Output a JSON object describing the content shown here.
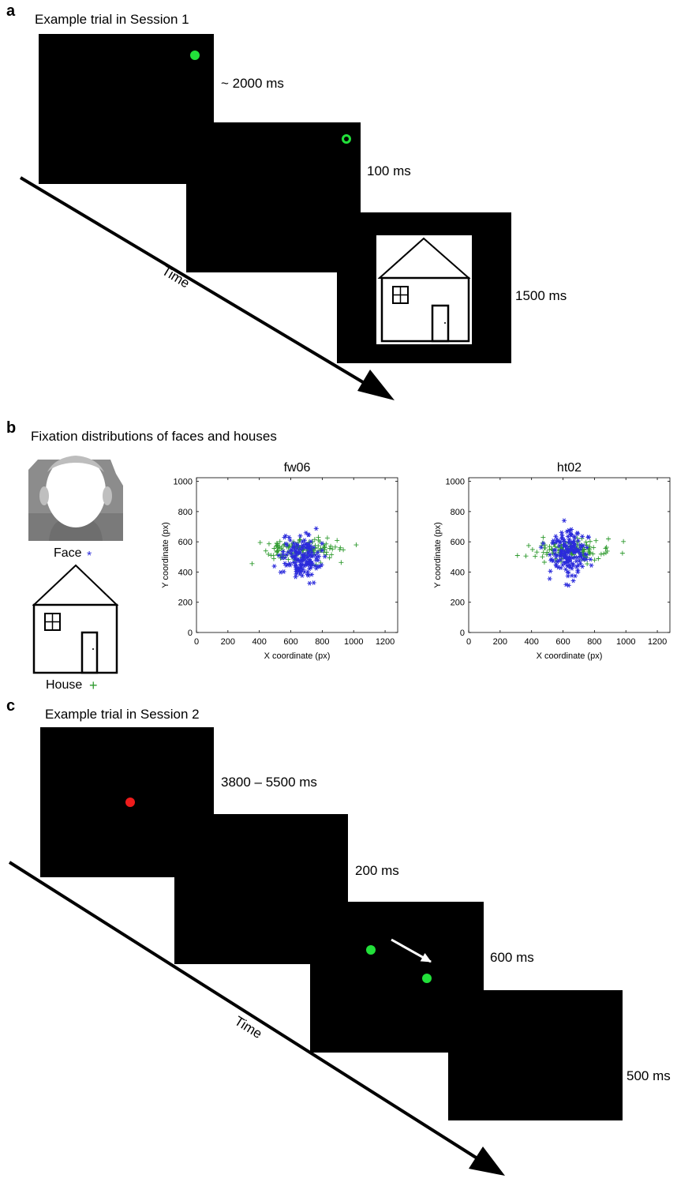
{
  "panel_a": {
    "letter": "a",
    "title": "Example trial in Session 1",
    "durations": [
      "~ 2000 ms",
      "100 ms",
      "1500 ms"
    ],
    "time_label": "Time"
  },
  "panel_b": {
    "letter": "b",
    "title": "Fixation distributions of faces and houses",
    "legend": [
      {
        "label": "Face",
        "marker": "*",
        "color": "#2b2bdb"
      },
      {
        "label": "House",
        "marker": "+",
        "color": "#2e9a2e"
      }
    ]
  },
  "panel_c": {
    "letter": "c",
    "title": "Example trial in Session 2",
    "durations": [
      "3800 – 5500 ms",
      "200 ms",
      "600 ms",
      "500 ms"
    ],
    "time_label": "Time"
  },
  "colors": {
    "screen": "#000000",
    "fixation_green": "#22e03a",
    "fixation_red": "#ee1c1c",
    "face_marker": "#2b2bdb",
    "house_marker": "#2e9a2e"
  },
  "chart_data": [
    {
      "type": "scatter",
      "title": "fw06",
      "xlabel": "X coordinate (px)",
      "ylabel": "Y coordinate (px)",
      "xlim": [
        0,
        1280
      ],
      "ylim": [
        0,
        1024
      ],
      "xticks": [
        0,
        200,
        400,
        600,
        800,
        1000,
        1200
      ],
      "yticks": [
        0,
        200,
        400,
        600,
        800,
        1000
      ],
      "series": [
        {
          "name": "Face",
          "marker": "*",
          "color": "#2b2bdb",
          "center": [
            660,
            500
          ],
          "spread": [
            60,
            70
          ],
          "count": 160
        },
        {
          "name": "House",
          "marker": "+",
          "color": "#2e9a2e",
          "center": [
            660,
            545
          ],
          "spread": [
            120,
            40
          ],
          "count": 140
        }
      ]
    },
    {
      "type": "scatter",
      "title": "ht02",
      "xlabel": "X coordinate (px)",
      "ylabel": "Y coordinate (px)",
      "xlim": [
        0,
        1280
      ],
      "ylim": [
        0,
        1024
      ],
      "xticks": [
        0,
        200,
        400,
        600,
        800,
        1000,
        1200
      ],
      "yticks": [
        0,
        200,
        400,
        600,
        800,
        1000
      ],
      "series": [
        {
          "name": "Face",
          "marker": "*",
          "color": "#2b2bdb",
          "center": [
            640,
            530
          ],
          "spread": [
            60,
            80
          ],
          "count": 160
        },
        {
          "name": "House",
          "marker": "+",
          "color": "#2e9a2e",
          "center": [
            650,
            545
          ],
          "spread": [
            125,
            40
          ],
          "count": 140
        }
      ]
    }
  ]
}
